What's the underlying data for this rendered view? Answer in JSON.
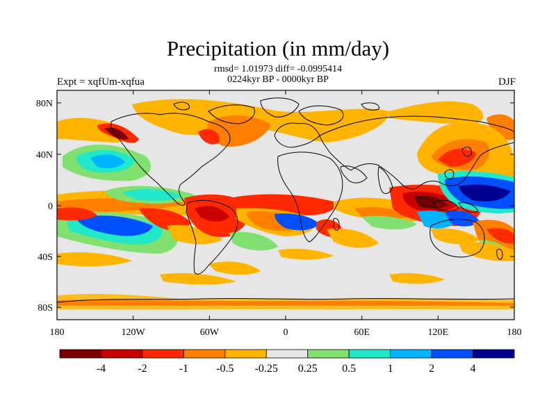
{
  "title": "Precipitation (in mm/day)",
  "stats_line": "rmsd= 1.01973 diff= -0.0995414",
  "period_line": "0224kyr BP - 0000kyr BP",
  "experiment_label": "Expt = xqfUm-xqfua",
  "season_label": "DJF",
  "lat_labels": [
    "80N",
    "40N",
    "0",
    "40S",
    "80S"
  ],
  "lon_labels": [
    "180",
    "120W",
    "60W",
    "0",
    "60E",
    "120E",
    "180"
  ],
  "colorbar": {
    "labels": [
      "-4",
      "-2",
      "-1",
      "-0.5",
      "-0.25",
      "0.25",
      "0.5",
      "1",
      "2",
      "4"
    ],
    "colors": [
      "#7a0000",
      "#c80000",
      "#ff2a00",
      "#ff8000",
      "#ffb400",
      "#e6e6e6",
      "#80e070",
      "#20e8c8",
      "#00b4ff",
      "#0050ff",
      "#000090"
    ]
  }
}
